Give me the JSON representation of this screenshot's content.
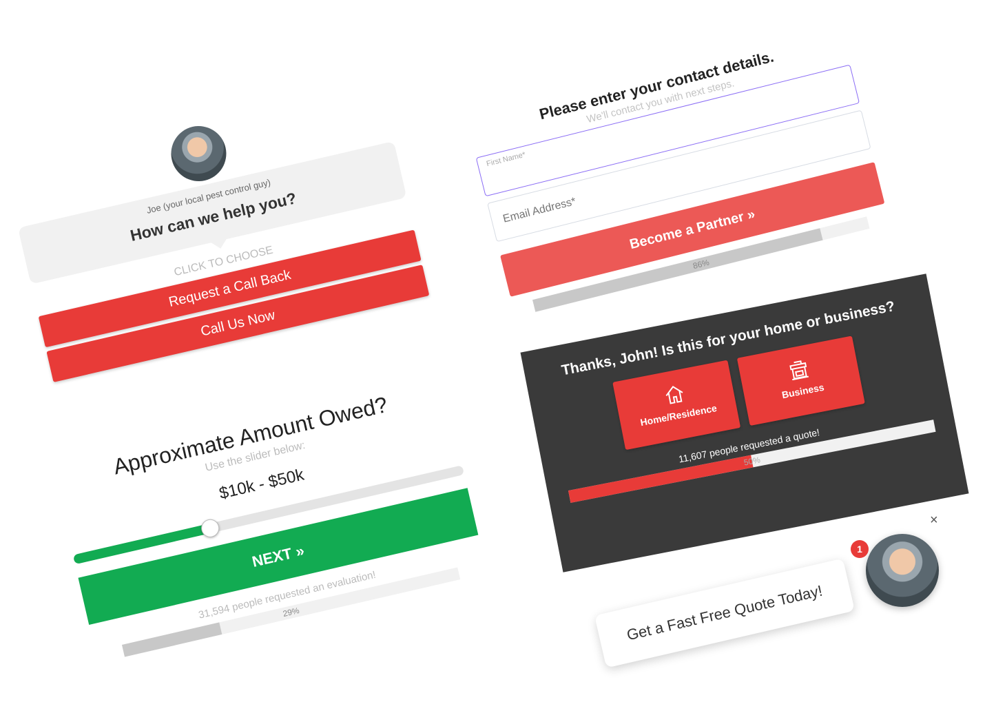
{
  "chat_widget": {
    "agent_caption": "Joe (your local pest control guy)",
    "question": "How can we help you?",
    "prompt": "CLICK TO CHOOSE",
    "options": [
      "Request a Call Back",
      "Call Us Now"
    ],
    "accent_color": "#e83b38"
  },
  "amount_widget": {
    "title": "Approximate Amount Owed?",
    "subtitle": "Use the slider below:",
    "range_value": "$10k - $50k",
    "slider_level": 0.35,
    "next_label": "NEXT »",
    "social_proof": "31,594 people requested an evaluation!",
    "progress_label": "29%",
    "progress": 0.29,
    "accent_color": "#12ab52"
  },
  "contact_form": {
    "title": "Please enter your contact details.",
    "subtitle": "We'll contact you with next steps.",
    "first_name_placeholder": "First Name*",
    "email_placeholder": "Email Address*",
    "submit_label": "Become a Partner »",
    "progress_label": "86%",
    "progress": 0.86,
    "button_color": "#ec5956",
    "focus_color": "#8a6cf5"
  },
  "type_widget": {
    "title": "Thanks, John! Is this for your home or business?",
    "options": [
      {
        "label": "Home/Residence",
        "icon": "house-icon"
      },
      {
        "label": "Business",
        "icon": "storefront-icon"
      }
    ],
    "social_proof": "11,607 people requested a quote!",
    "progress_label": "50%",
    "progress": 0.5
  },
  "chat_bubble": {
    "message": "Get a Fast Free Quote Today!",
    "badge_count": "1",
    "close_label": "×"
  }
}
